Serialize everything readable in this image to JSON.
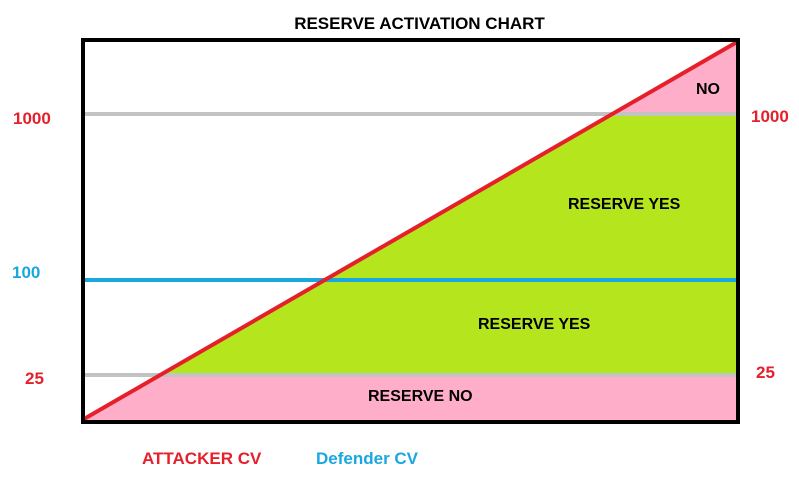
{
  "title": "RESERVE ACTIVATION CHART",
  "left_axis": {
    "top": "1000",
    "middle": "100",
    "bottom": "25"
  },
  "right_axis": {
    "top": "1000",
    "bottom": "25"
  },
  "regions": {
    "top_no": "NO",
    "upper_yes": "RESERVE YES",
    "lower_yes": "RESERVE YES",
    "bottom_no": "RESERVE NO"
  },
  "legend": {
    "attacker": "ATTACKER CV",
    "defender": "Defender CV"
  },
  "colors": {
    "attacker": "#e5202a",
    "defender": "#19a7e0",
    "yes_fill": "#b5e61d",
    "no_fill": "#ffaec9",
    "threshold": "#c3c3c3",
    "frame": "#000000"
  }
}
